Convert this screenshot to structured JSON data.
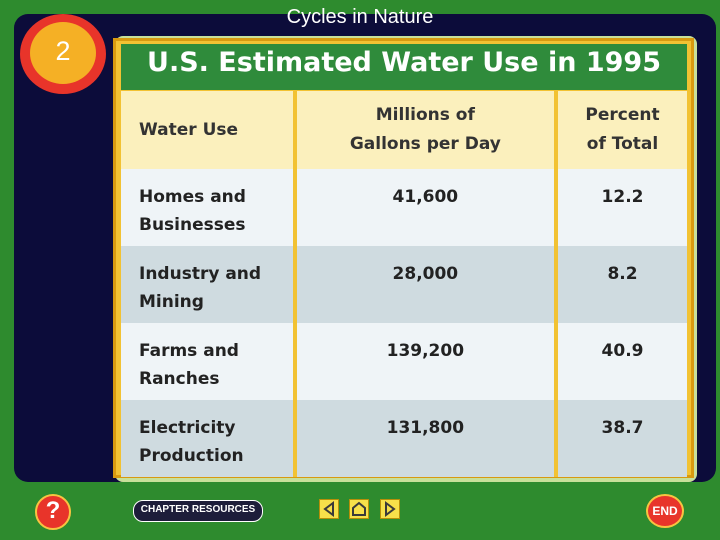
{
  "slide": {
    "header_title": "Cycles in Nature",
    "badge_number": "2"
  },
  "table": {
    "title": "U.S. Estimated Water Use in 1995",
    "columns": [
      "Water Use",
      "Millions of Gallons per Day",
      "Percent of Total"
    ],
    "column_lines": [
      [
        "Water Use"
      ],
      [
        "Millions of",
        "Gallons per Day"
      ],
      [
        "Percent",
        "of Total"
      ]
    ],
    "rows": [
      {
        "use_lines": [
          "Homes and",
          "Businesses"
        ],
        "gallons": "41,600",
        "percent": "12.2"
      },
      {
        "use_lines": [
          "Industry and",
          "Mining"
        ],
        "gallons": "28,000",
        "percent": "8.2"
      },
      {
        "use_lines": [
          "Farms and",
          "Ranches"
        ],
        "gallons": "139,200",
        "percent": "40.9"
      },
      {
        "use_lines": [
          "Electricity",
          "Production"
        ],
        "gallons": "131,800",
        "percent": "38.7"
      }
    ]
  },
  "footer": {
    "help_icon": "question-icon",
    "help_label": "?",
    "chapter_resources": "CHAPTER RESOURCES",
    "end_label": "END",
    "nav_icons": [
      "previous-icon",
      "home-icon",
      "next-icon"
    ]
  }
}
